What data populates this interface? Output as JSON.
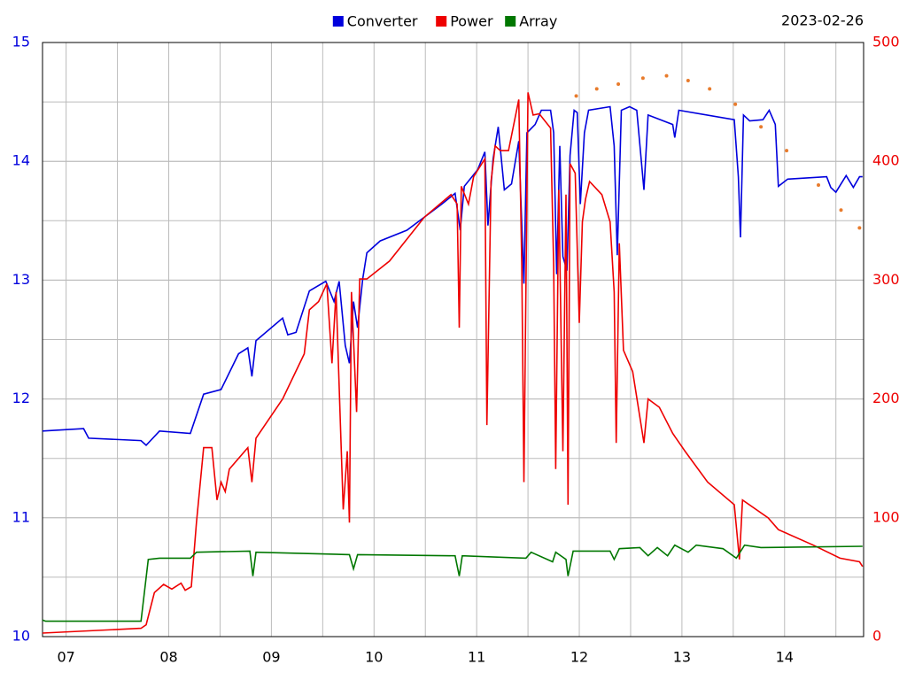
{
  "chart_data": {
    "type": "line",
    "date": "2023-02-26",
    "xlim": [
      6.77,
      14.77
    ],
    "xticks": [
      {
        "value": 7,
        "label": "07"
      },
      {
        "value": 8,
        "label": "08"
      },
      {
        "value": 9,
        "label": "09"
      },
      {
        "value": 10,
        "label": "10"
      },
      {
        "value": 11,
        "label": "11"
      },
      {
        "value": 12,
        "label": "12"
      },
      {
        "value": 13,
        "label": "13"
      },
      {
        "value": 14,
        "label": "14"
      }
    ],
    "xminorticks": [
      7.5,
      8.5,
      9.5,
      10.5,
      11.5,
      12.5,
      13.5,
      14.5
    ],
    "ylim": [
      10,
      15
    ],
    "yticks": [
      10,
      11,
      12,
      13,
      14,
      15
    ],
    "yminorticks": [
      10.5,
      11.5,
      12.5,
      13.5,
      14.5
    ],
    "y2lim": [
      0,
      500
    ],
    "y2ticks": [
      0,
      100,
      200,
      300,
      400,
      500
    ],
    "ytick_color": "#0000dd",
    "y2tick_color": "#ee0000",
    "grid": true,
    "series": [
      {
        "name": "Converter",
        "color": "#0000dd",
        "x": [
          6.77,
          7.17,
          7.22,
          7.73,
          7.78,
          7.91,
          8.21,
          8.34,
          8.51,
          8.68,
          8.77,
          8.81,
          8.85,
          9.11,
          9.16,
          9.24,
          9.37,
          9.53,
          9.61,
          9.66,
          9.72,
          9.76,
          9.8,
          9.84,
          9.89,
          9.93,
          10.06,
          10.32,
          10.66,
          10.79,
          10.84,
          10.88,
          11.01,
          11.08,
          11.11,
          11.16,
          11.21,
          11.27,
          11.34,
          11.41,
          11.46,
          11.49,
          11.57,
          11.63,
          11.72,
          11.75,
          11.78,
          11.81,
          11.84,
          11.88,
          11.91,
          11.95,
          11.98,
          12.01,
          12.05,
          12.09,
          12.3,
          12.34,
          12.37,
          12.41,
          12.49,
          12.56,
          12.63,
          12.67,
          12.91,
          12.93,
          12.97,
          13.51,
          13.55,
          13.57,
          13.6,
          13.66,
          13.79,
          13.85,
          13.91,
          13.94,
          14.03,
          14.41,
          14.45,
          14.5,
          14.6,
          14.67,
          14.73,
          14.76
        ],
        "values": [
          11.73,
          11.75,
          11.67,
          11.65,
          11.61,
          11.73,
          11.71,
          12.04,
          12.08,
          12.38,
          12.43,
          12.19,
          12.49,
          12.68,
          12.54,
          12.56,
          12.91,
          12.99,
          12.82,
          12.99,
          12.45,
          12.3,
          12.82,
          12.6,
          13.01,
          13.23,
          13.33,
          13.42,
          13.64,
          13.73,
          13.42,
          13.79,
          13.93,
          14.08,
          13.46,
          14.02,
          14.29,
          13.76,
          13.81,
          14.17,
          12.97,
          14.24,
          14.31,
          14.43,
          14.43,
          14.24,
          13.05,
          14.13,
          13.2,
          13.08,
          14.05,
          14.43,
          14.41,
          13.64,
          14.24,
          14.43,
          14.46,
          14.13,
          13.21,
          14.43,
          14.46,
          14.43,
          13.76,
          14.39,
          14.31,
          14.2,
          14.43,
          14.35,
          13.87,
          13.36,
          14.39,
          14.34,
          14.35,
          14.43,
          14.31,
          13.79,
          13.85,
          13.87,
          13.78,
          13.74,
          13.88,
          13.78,
          13.87,
          13.87
        ]
      },
      {
        "name": "Power",
        "color": "#ee0000",
        "axis": "y2",
        "x": [
          6.77,
          7.73,
          7.78,
          7.86,
          7.95,
          8.03,
          8.12,
          8.16,
          8.22,
          8.27,
          8.34,
          8.42,
          8.47,
          8.51,
          8.55,
          8.59,
          8.77,
          8.81,
          8.85,
          9.11,
          9.32,
          9.37,
          9.46,
          9.54,
          9.59,
          9.63,
          9.7,
          9.74,
          9.76,
          9.78,
          9.83,
          9.86,
          9.93,
          10.15,
          10.49,
          10.75,
          10.81,
          10.83,
          10.85,
          10.92,
          10.97,
          11.08,
          11.1,
          11.14,
          11.18,
          11.23,
          11.31,
          11.41,
          11.44,
          11.46,
          11.5,
          11.55,
          11.61,
          11.72,
          11.75,
          11.77,
          11.8,
          11.84,
          11.87,
          11.89,
          11.91,
          11.96,
          12.0,
          12.03,
          12.06,
          12.1,
          12.22,
          12.3,
          12.34,
          12.36,
          12.39,
          12.43,
          12.52,
          12.63,
          12.67,
          12.78,
          12.91,
          13.03,
          13.25,
          13.51,
          13.56,
          13.59,
          13.84,
          13.94,
          14.28,
          14.54,
          14.73,
          14.76
        ],
        "values": [
          3,
          7,
          10,
          37,
          44,
          40,
          45,
          39,
          42,
          96,
          159,
          159,
          115,
          130,
          122,
          141,
          159,
          130,
          167,
          200,
          238,
          275,
          282,
          297,
          230,
          290,
          107,
          156,
          96,
          290,
          189,
          301,
          301,
          316,
          353,
          372,
          364,
          260,
          379,
          364,
          387,
          402,
          178,
          383,
          413,
          409,
          409,
          452,
          312,
          130,
          458,
          439,
          440,
          428,
          312,
          141,
          376,
          156,
          372,
          111,
          398,
          390,
          264,
          349,
          368,
          383,
          372,
          349,
          290,
          163,
          331,
          241,
          223,
          163,
          200,
          193,
          171,
          156,
          130,
          111,
          65,
          115,
          100,
          90,
          77,
          66,
          63,
          59
        ]
      },
      {
        "name": "Array",
        "color": "#007700",
        "x": [
          6.77,
          6.8,
          7.73,
          7.8,
          7.91,
          8.21,
          8.27,
          8.79,
          8.82,
          8.85,
          9.76,
          9.8,
          9.84,
          10.79,
          10.83,
          10.86,
          11.48,
          11.53,
          11.74,
          11.77,
          11.87,
          11.89,
          11.94,
          12.3,
          12.34,
          12.39,
          12.59,
          12.67,
          12.76,
          12.86,
          12.93,
          13.06,
          13.14,
          13.4,
          13.53,
          13.61,
          13.77,
          14.76
        ],
        "values": [
          10.14,
          10.13,
          10.13,
          10.65,
          10.66,
          10.66,
          10.71,
          10.72,
          10.51,
          10.71,
          10.69,
          10.57,
          10.69,
          10.68,
          10.51,
          10.68,
          10.66,
          10.71,
          10.63,
          10.71,
          10.65,
          10.51,
          10.72,
          10.72,
          10.65,
          10.74,
          10.75,
          10.68,
          10.75,
          10.68,
          10.77,
          10.71,
          10.77,
          10.74,
          10.66,
          10.77,
          10.75,
          10.76
        ]
      }
    ],
    "dots": {
      "color": "#e87b2c",
      "axis": "y2",
      "x": [
        11.97,
        12.17,
        12.38,
        12.62,
        12.85,
        13.06,
        13.27,
        13.52,
        13.77,
        14.02,
        14.33,
        14.55,
        14.73
      ],
      "values": [
        455,
        461,
        465,
        470,
        472,
        468,
        461,
        448,
        429,
        409,
        380,
        359,
        344
      ]
    }
  }
}
